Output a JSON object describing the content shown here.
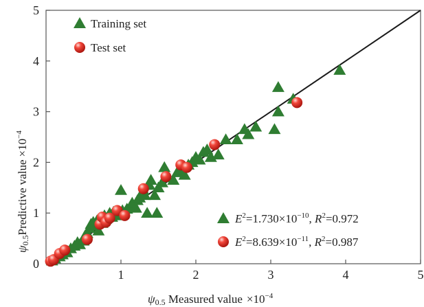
{
  "chart_data": {
    "type": "scatter",
    "xlim": [
      0,
      5
    ],
    "ylim": [
      0,
      5
    ],
    "x_ticks": [
      "1",
      "2",
      "3",
      "4",
      "5"
    ],
    "y_ticks": [
      "0",
      "1",
      "2",
      "3",
      "4",
      "5"
    ],
    "x_axis": {
      "symbol": "ψ",
      "subscript": "0.5",
      "text": " Measured value",
      "unit_base": "×10",
      "unit_exp": "−4"
    },
    "y_axis": {
      "symbol": "ψ",
      "subscript": "0.5",
      "text": "Predictive value",
      "unit_base": "×10",
      "unit_exp": "−4"
    },
    "grid": false,
    "legend_position": "top-left",
    "reference_line": {
      "x": [
        0,
        5
      ],
      "y": [
        0,
        5
      ],
      "color": "#1a1a1a"
    },
    "series": [
      {
        "name": "Training set",
        "marker": "triangle",
        "color": "#2f7d32",
        "stat_parts": [
          "E",
          "2",
          "=1.730×10",
          "−10",
          ", ",
          "R",
          "2",
          "=0.972"
        ],
        "points": [
          [
            0.08,
            0.06
          ],
          [
            0.12,
            0.1
          ],
          [
            0.18,
            0.14
          ],
          [
            0.22,
            0.18
          ],
          [
            0.28,
            0.22
          ],
          [
            0.33,
            0.3
          ],
          [
            0.38,
            0.35
          ],
          [
            0.42,
            0.42
          ],
          [
            0.45,
            0.38
          ],
          [
            0.5,
            0.45
          ],
          [
            0.52,
            0.55
          ],
          [
            0.55,
            0.6
          ],
          [
            0.58,
            0.7
          ],
          [
            0.6,
            0.78
          ],
          [
            0.63,
            0.82
          ],
          [
            0.65,
            0.75
          ],
          [
            0.68,
            0.85
          ],
          [
            0.7,
            0.65
          ],
          [
            0.72,
            0.9
          ],
          [
            0.75,
            0.8
          ],
          [
            0.78,
            0.95
          ],
          [
            0.8,
            0.88
          ],
          [
            0.85,
            1.0
          ],
          [
            0.88,
            0.92
          ],
          [
            0.9,
            1.02
          ],
          [
            0.95,
            0.98
          ],
          [
            0.98,
            0.95
          ],
          [
            1.0,
            1.45
          ],
          [
            1.02,
            1.05
          ],
          [
            1.08,
            1.08
          ],
          [
            1.12,
            1.12
          ],
          [
            1.15,
            1.2
          ],
          [
            1.2,
            1.1
          ],
          [
            1.22,
            1.25
          ],
          [
            1.25,
            1.3
          ],
          [
            1.3,
            1.45
          ],
          [
            1.32,
            1.35
          ],
          [
            1.35,
            1.0
          ],
          [
            1.38,
            1.55
          ],
          [
            1.4,
            1.65
          ],
          [
            1.45,
            1.35
          ],
          [
            1.48,
            1.0
          ],
          [
            1.5,
            1.5
          ],
          [
            1.55,
            1.6
          ],
          [
            1.58,
            1.9
          ],
          [
            1.62,
            1.7
          ],
          [
            1.7,
            1.65
          ],
          [
            1.75,
            1.8
          ],
          [
            1.8,
            1.85
          ],
          [
            1.85,
            1.75
          ],
          [
            1.9,
            1.95
          ],
          [
            1.95,
            2.0
          ],
          [
            2.0,
            2.1
          ],
          [
            2.05,
            2.05
          ],
          [
            2.1,
            2.2
          ],
          [
            2.15,
            2.25
          ],
          [
            2.2,
            2.1
          ],
          [
            2.3,
            2.15
          ],
          [
            2.4,
            2.45
          ],
          [
            2.55,
            2.45
          ],
          [
            2.65,
            2.65
          ],
          [
            2.7,
            2.55
          ],
          [
            2.8,
            2.7
          ],
          [
            3.05,
            2.65
          ],
          [
            3.1,
            3.0
          ],
          [
            3.1,
            3.48
          ],
          [
            3.3,
            3.25
          ],
          [
            3.92,
            3.82
          ]
        ]
      },
      {
        "name": "Test set",
        "marker": "sphere",
        "color": "#e0271d",
        "stat_parts": [
          "E",
          "2",
          "=8.639×10",
          "−11",
          ", ",
          "R",
          "2",
          "=0.987"
        ],
        "points": [
          [
            0.06,
            0.05
          ],
          [
            0.1,
            0.08
          ],
          [
            0.18,
            0.2
          ],
          [
            0.25,
            0.27
          ],
          [
            0.55,
            0.48
          ],
          [
            0.72,
            0.78
          ],
          [
            0.75,
            0.92
          ],
          [
            0.8,
            0.82
          ],
          [
            0.85,
            0.9
          ],
          [
            0.95,
            1.05
          ],
          [
            1.05,
            0.95
          ],
          [
            1.3,
            1.48
          ],
          [
            1.6,
            1.72
          ],
          [
            1.8,
            1.95
          ],
          [
            1.88,
            1.9
          ],
          [
            2.25,
            2.35
          ],
          [
            3.35,
            3.18
          ]
        ]
      }
    ]
  }
}
